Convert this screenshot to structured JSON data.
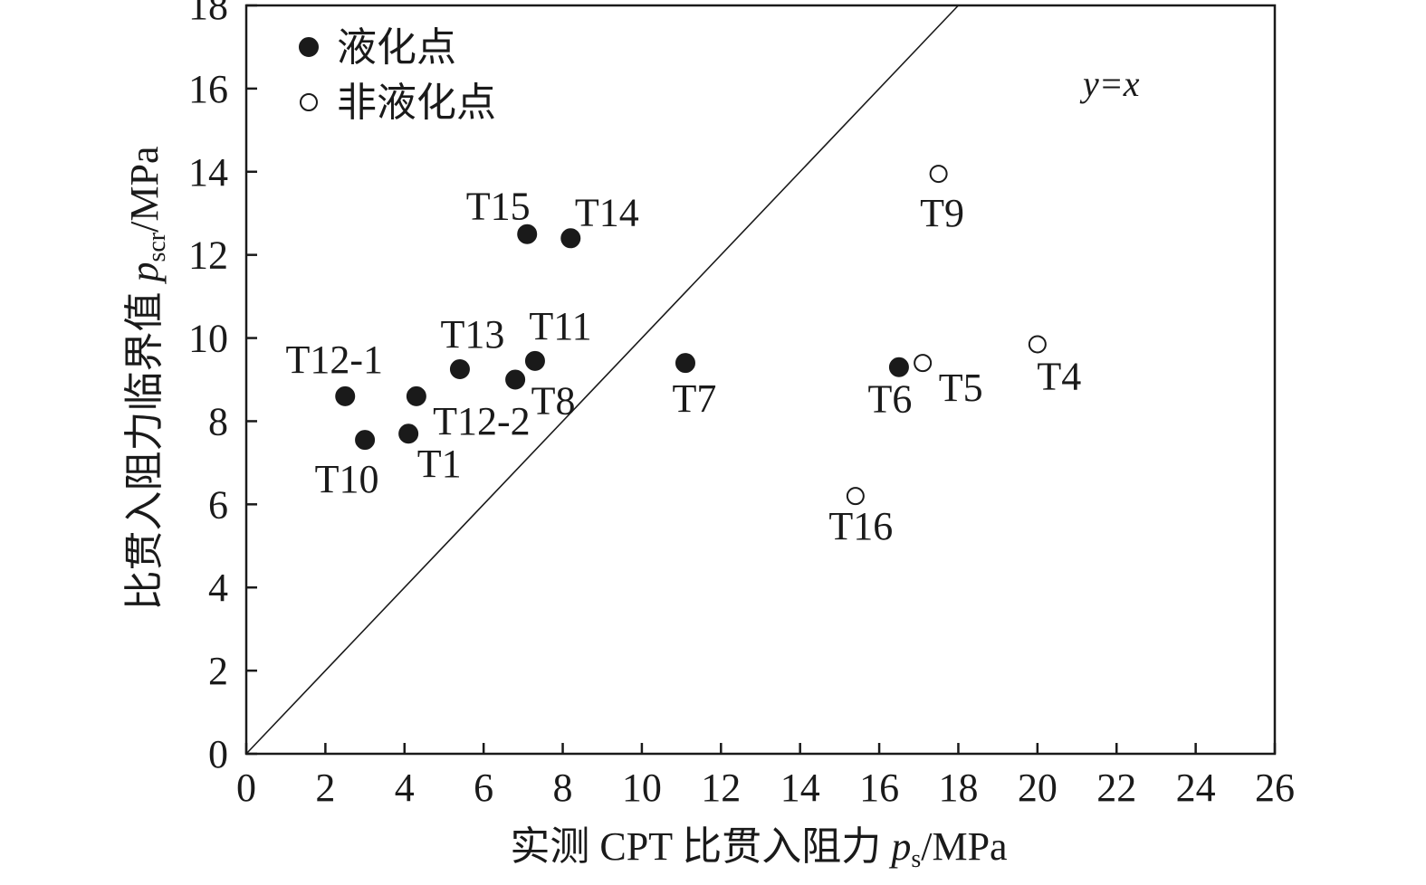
{
  "chart_data": {
    "type": "scatter",
    "xlabel_prefix": "实测 CPT 比贯入阻力 ",
    "xlabel_var": "p",
    "xlabel_sub": "s",
    "xlabel_unit": "/MPa",
    "ylabel_prefix": "比贯入阻力临界值 ",
    "ylabel_var": "p",
    "ylabel_sub": "scr",
    "ylabel_unit": "/MPa",
    "xlim": [
      0,
      26
    ],
    "ylim": [
      0,
      18
    ],
    "x_ticks": [
      0,
      2,
      4,
      6,
      8,
      10,
      12,
      14,
      16,
      18,
      20,
      22,
      24,
      26
    ],
    "y_ticks": [
      0,
      2,
      4,
      6,
      8,
      10,
      12,
      14,
      16,
      18
    ],
    "reference_line": {
      "label": "y=x",
      "from": [
        0,
        0
      ],
      "to": [
        18,
        18
      ]
    },
    "legend_position": "top-left",
    "series": [
      {
        "name": "液化点",
        "marker": "filled-circle",
        "points": [
          {
            "label": "T1",
            "x": 4.1,
            "y": 7.7
          },
          {
            "label": "T6",
            "x": 16.5,
            "y": 9.3
          },
          {
            "label": "T7",
            "x": 11.1,
            "y": 9.4
          },
          {
            "label": "T8",
            "x": 6.8,
            "y": 9.0
          },
          {
            "label": "T10",
            "x": 3.0,
            "y": 7.55
          },
          {
            "label": "T11",
            "x": 7.3,
            "y": 9.45
          },
          {
            "label": "T12-1",
            "x": 2.5,
            "y": 8.6
          },
          {
            "label": "T12-2",
            "x": 4.3,
            "y": 8.6
          },
          {
            "label": "T13",
            "x": 5.4,
            "y": 9.25
          },
          {
            "label": "T14",
            "x": 8.2,
            "y": 12.4
          },
          {
            "label": "T15",
            "x": 7.1,
            "y": 12.5
          }
        ]
      },
      {
        "name": "非液化点",
        "marker": "open-circle",
        "points": [
          {
            "label": "T4",
            "x": 20.0,
            "y": 9.85
          },
          {
            "label": "T5",
            "x": 17.1,
            "y": 9.4
          },
          {
            "label": "T9",
            "x": 17.5,
            "y": 13.95
          },
          {
            "label": "T16",
            "x": 15.4,
            "y": 6.2
          }
        ]
      }
    ]
  }
}
